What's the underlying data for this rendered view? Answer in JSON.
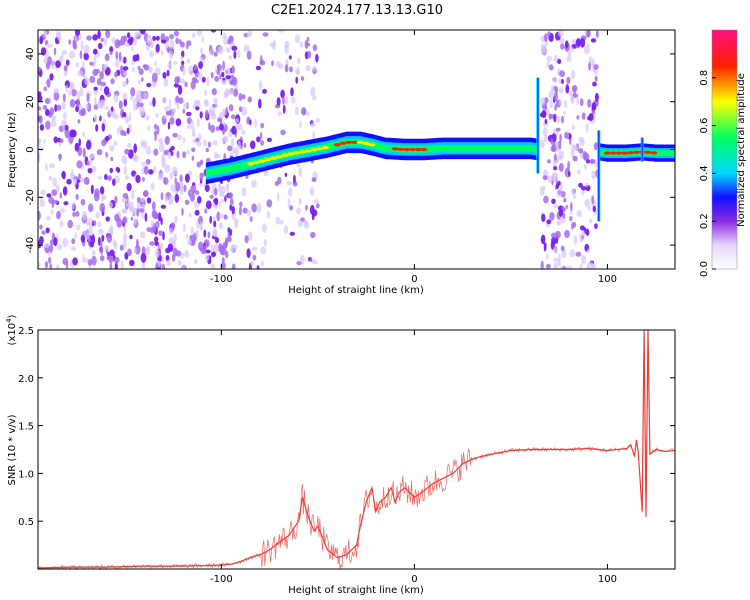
{
  "title": "C2E1.2024.177.13.13.G10",
  "chart_data": [
    {
      "type": "heatmap",
      "xlabel": "Height of straight line (km)",
      "ylabel": "Frequency (Hz)",
      "xlim": [
        -195,
        135
      ],
      "ylim": [
        -50,
        50
      ],
      "xticks": [
        -100,
        0,
        100
      ],
      "yticks": [
        -40,
        -20,
        0,
        20,
        40
      ],
      "colorbar": {
        "label": "Normalized spectral amplitude",
        "range": [
          0,
          1
        ],
        "ticks": [
          0.0,
          0.2,
          0.4,
          0.6,
          0.8
        ]
      },
      "ridge": {
        "x": [
          -108,
          -95,
          -85,
          -75,
          -65,
          -55,
          -45,
          -35,
          -28,
          -22,
          -15,
          -5,
          5,
          15,
          25,
          40,
          60,
          64,
          96,
          100,
          110,
          118,
          125,
          135
        ],
        "y": [
          -10,
          -8,
          -6,
          -4,
          -2,
          -0.5,
          1,
          3,
          3,
          2,
          0.5,
          0,
          0,
          0.5,
          0.5,
          0.5,
          0.5,
          0,
          -1,
          -1.5,
          -1.5,
          -1,
          -1.5,
          -1.5
        ]
      },
      "noise_regions": [
        {
          "x_start": -195,
          "x_end": -92,
          "level": "high"
        },
        {
          "x_start": -92,
          "x_end": -50,
          "level": "moderate"
        },
        {
          "x_start": 66,
          "x_end": 95,
          "level": "high"
        }
      ]
    },
    {
      "type": "line",
      "xlabel": "Height of straight line (km)",
      "ylabel": "SNR (10 * v/v)",
      "y_scale_label": "(x10^4)",
      "xlim": [
        -195,
        135
      ],
      "ylim": [
        0,
        2.5
      ],
      "xticks": [
        -100,
        0,
        100
      ],
      "yticks": [
        0.5,
        1.0,
        1.5,
        2.0,
        2.5
      ],
      "color": "#e8413a",
      "series": [
        {
          "name": "",
          "x": [
            -195,
            -180,
            -160,
            -140,
            -120,
            -100,
            -95,
            -90,
            -85,
            -80,
            -75,
            -70,
            -65,
            -60,
            -58,
            -55,
            -52,
            -50,
            -45,
            -40,
            -35,
            -30,
            -28,
            -25,
            -22,
            -20,
            -18,
            -15,
            -12,
            -10,
            -8,
            -5,
            0,
            5,
            10,
            15,
            20,
            25,
            30,
            35,
            40,
            45,
            50,
            60,
            70,
            80,
            90,
            100,
            105,
            110,
            112,
            114,
            115,
            116,
            117,
            118,
            119,
            120,
            121,
            122,
            125,
            130,
            135
          ],
          "y": [
            0.01,
            0.02,
            0.02,
            0.03,
            0.03,
            0.04,
            0.05,
            0.08,
            0.12,
            0.15,
            0.2,
            0.28,
            0.35,
            0.5,
            0.75,
            0.55,
            0.4,
            0.45,
            0.2,
            0.12,
            0.15,
            0.25,
            0.45,
            0.7,
            0.85,
            0.6,
            0.7,
            0.75,
            0.85,
            0.7,
            0.8,
            0.85,
            0.75,
            0.82,
            0.9,
            0.95,
            1.0,
            1.1,
            1.15,
            1.18,
            1.2,
            1.22,
            1.24,
            1.25,
            1.25,
            1.25,
            1.26,
            1.24,
            1.25,
            1.26,
            1.3,
            1.18,
            1.35,
            1.22,
            0.9,
            0.6,
            2.5,
            0.55,
            2.5,
            1.2,
            1.25,
            1.23,
            1.24
          ]
        }
      ]
    }
  ]
}
